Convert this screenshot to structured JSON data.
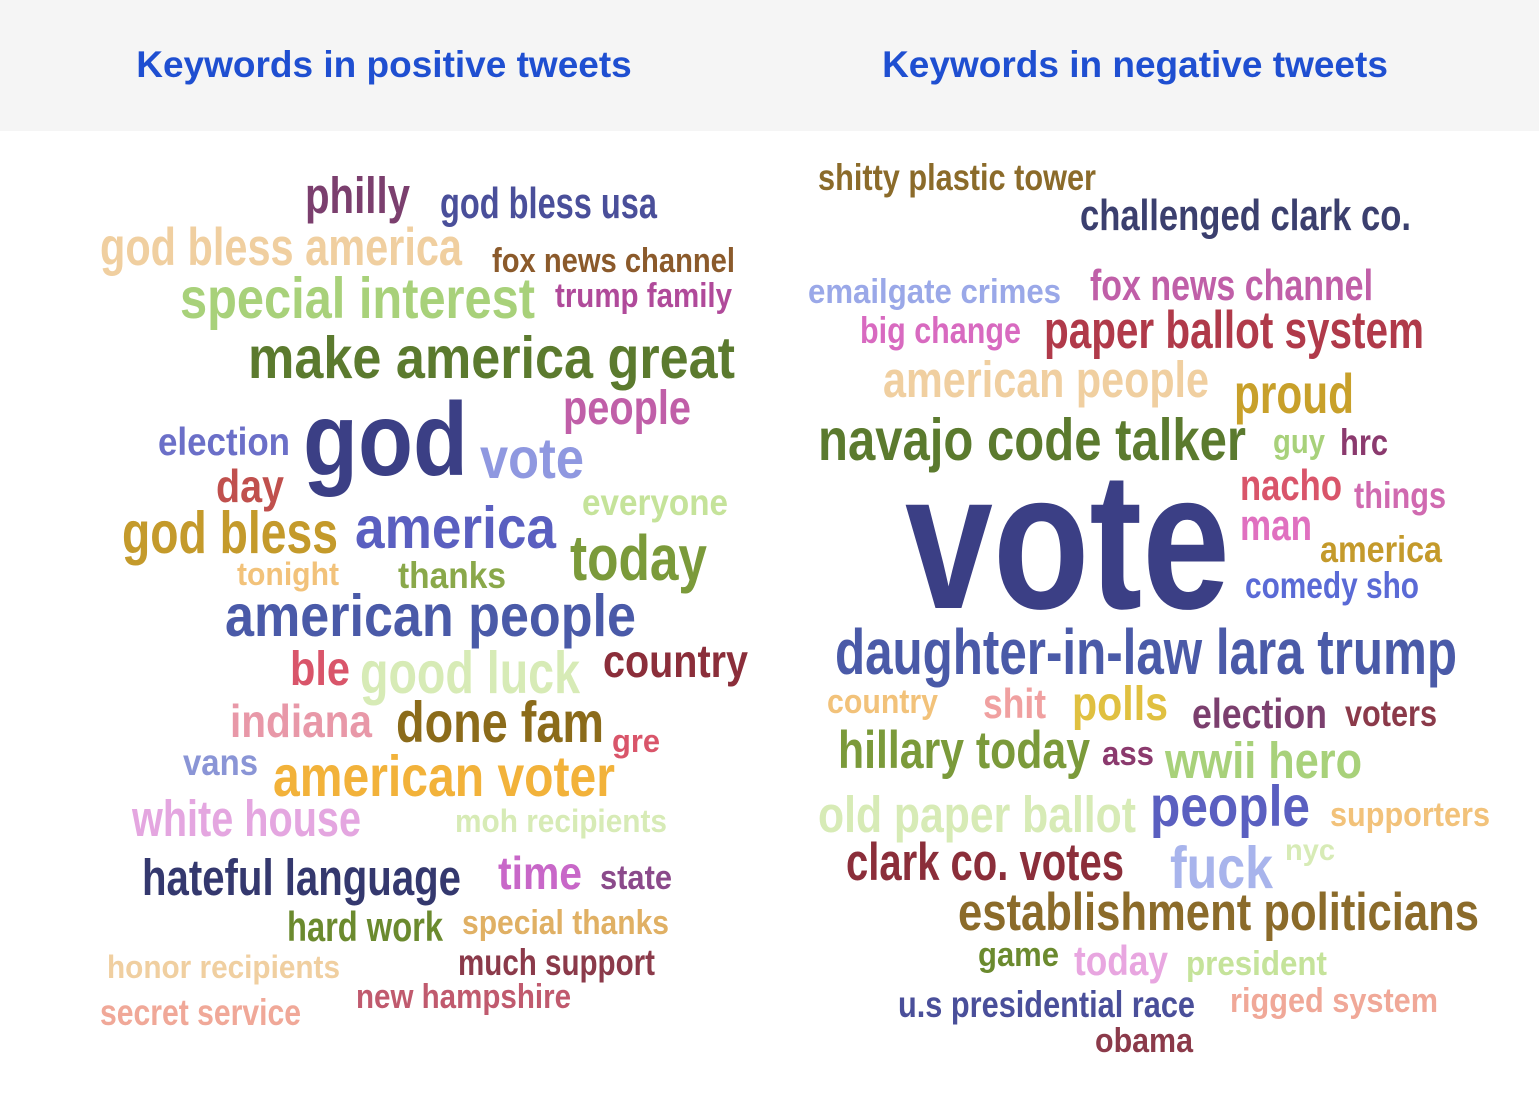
{
  "panels": [
    {
      "title": "Keywords in positive tweets",
      "words": [
        {
          "text": "philly",
          "color": "#7b3f6e"
        },
        {
          "text": "god bless usa",
          "color": "#4a4f9a"
        },
        {
          "text": "god bless america",
          "color": "#f0cfa0"
        },
        {
          "text": "fox news channel",
          "color": "#8b5a2b"
        },
        {
          "text": "special interest",
          "color": "#a8d17a"
        },
        {
          "text": "trump family",
          "color": "#b04a9a"
        },
        {
          "text": "make america great",
          "color": "#5b7a2e"
        },
        {
          "text": "people",
          "color": "#c05fa8"
        },
        {
          "text": "election",
          "color": "#6b6fc8"
        },
        {
          "text": "god",
          "color": "#3b3f85"
        },
        {
          "text": "vote",
          "color": "#8f98e0"
        },
        {
          "text": "day",
          "color": "#c0504d"
        },
        {
          "text": "everyone",
          "color": "#c5e39a"
        },
        {
          "text": "god bless",
          "color": "#c49a2b"
        },
        {
          "text": "america",
          "color": "#5a5fc0"
        },
        {
          "text": "today",
          "color": "#7b9a3a"
        },
        {
          "text": "tonight",
          "color": "#f2c27a"
        },
        {
          "text": "thanks",
          "color": "#8aa84a"
        },
        {
          "text": "american people",
          "color": "#4a5aa8"
        },
        {
          "text": "ble",
          "color": "#d9556a"
        },
        {
          "text": "good luck",
          "color": "#d7ebb6"
        },
        {
          "text": "country",
          "color": "#8b2e3a"
        },
        {
          "text": "indiana",
          "color": "#e898a8"
        },
        {
          "text": "done fam",
          "color": "#8b6b1a"
        },
        {
          "text": "gre",
          "color": "#d9556a"
        },
        {
          "text": "vans",
          "color": "#8a95d6"
        },
        {
          "text": "american voter",
          "color": "#f2b23a"
        },
        {
          "text": "white house",
          "color": "#e4a6e0"
        },
        {
          "text": "moh recipients",
          "color": "#d7ebb6"
        },
        {
          "text": "hateful language",
          "color": "#34386e"
        },
        {
          "text": "time",
          "color": "#c867c8"
        },
        {
          "text": "state",
          "color": "#8b4a8b"
        },
        {
          "text": "hard work",
          "color": "#6b8a2e"
        },
        {
          "text": "special thanks",
          "color": "#e0b064"
        },
        {
          "text": "much support",
          "color": "#8b3a4a"
        },
        {
          "text": "honor recipients",
          "color": "#f0cfa0"
        },
        {
          "text": "new hampshire",
          "color": "#c05a6e"
        },
        {
          "text": "secret service",
          "color": "#f0a898"
        }
      ]
    },
    {
      "title": "Keywords in negative tweets",
      "words": [
        {
          "text": "shitty plastic tower",
          "color": "#8b6b2a"
        },
        {
          "text": "challenged clark co.",
          "color": "#3b3f6e"
        },
        {
          "text": "emailgate crimes",
          "color": "#9aa8e8"
        },
        {
          "text": "fox news channel",
          "color": "#c05fa8"
        },
        {
          "text": "big change",
          "color": "#d86ac0"
        },
        {
          "text": "paper ballot system",
          "color": "#b03a4a"
        },
        {
          "text": "american people",
          "color": "#f0cfa0"
        },
        {
          "text": "proud",
          "color": "#c8a02a"
        },
        {
          "text": "navajo code talker",
          "color": "#5b7a2e"
        },
        {
          "text": "guy",
          "color": "#a8d17a"
        },
        {
          "text": "hrc",
          "color": "#8b3a6e"
        },
        {
          "text": "vote",
          "color": "#3b3f85"
        },
        {
          "text": "nacho",
          "color": "#d9556a"
        },
        {
          "text": "things",
          "color": "#d06ab0"
        },
        {
          "text": "man",
          "color": "#e070c0"
        },
        {
          "text": "america",
          "color": "#c49a2b"
        },
        {
          "text": "comedy sho",
          "color": "#5a6ad6"
        },
        {
          "text": "daughter-in-law lara trump",
          "color": "#4a5aa8"
        },
        {
          "text": "country",
          "color": "#f2c27a"
        },
        {
          "text": "shit",
          "color": "#f0a0a0"
        },
        {
          "text": "polls",
          "color": "#e0c040"
        },
        {
          "text": "election",
          "color": "#7b3f6e"
        },
        {
          "text": "voters",
          "color": "#8b3a4a"
        },
        {
          "text": "hillary today",
          "color": "#7b9a3a"
        },
        {
          "text": "ass",
          "color": "#8b3a6e"
        },
        {
          "text": "wwii hero",
          "color": "#a8d17a"
        },
        {
          "text": "old paper ballot",
          "color": "#d7ebb6"
        },
        {
          "text": "people",
          "color": "#5a5fc0"
        },
        {
          "text": "supporters",
          "color": "#f2c27a"
        },
        {
          "text": "clark co. votes",
          "color": "#8b2e3a"
        },
        {
          "text": "fuck",
          "color": "#a8b4ec"
        },
        {
          "text": "nyc",
          "color": "#d7ebb6"
        },
        {
          "text": "establishment politicians",
          "color": "#8b6b2a"
        },
        {
          "text": "game",
          "color": "#6b8a2e"
        },
        {
          "text": "today",
          "color": "#e8a6e0"
        },
        {
          "text": "president",
          "color": "#c5e39a"
        },
        {
          "text": "u.s presidential race",
          "color": "#4a4f9a"
        },
        {
          "text": "rigged system",
          "color": "#f0a898"
        },
        {
          "text": "obama",
          "color": "#8b3a4a"
        }
      ]
    }
  ]
}
